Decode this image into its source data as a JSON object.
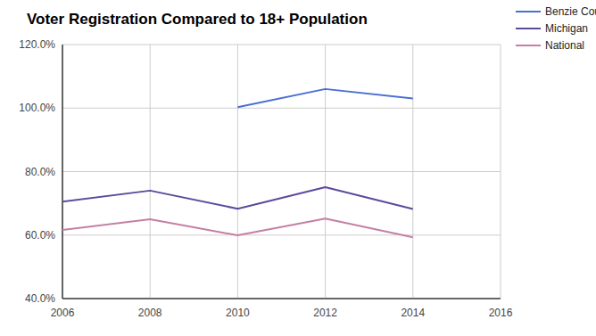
{
  "chart_data": {
    "type": "line",
    "title": "Voter Registration Compared to 18+ Population",
    "x": [
      2006,
      2008,
      2010,
      2012,
      2014
    ],
    "series": [
      {
        "name": "Benzie County",
        "color": "#4a6fd1",
        "values": [
          null,
          null,
          100.3,
          106.0,
          103.0
        ]
      },
      {
        "name": "Michigan",
        "color": "#5e4a9c",
        "values": [
          70.5,
          74.0,
          68.3,
          75.1,
          68.2
        ]
      },
      {
        "name": "National",
        "color": "#c47fa4",
        "values": [
          61.6,
          65.0,
          59.9,
          65.2,
          59.3
        ]
      }
    ],
    "xlim": [
      2006,
      2016
    ],
    "xticks": [
      2006,
      2008,
      2010,
      2012,
      2014,
      2016
    ],
    "ylim": [
      40,
      120
    ],
    "yticks": [
      {
        "value": 40,
        "label": "40.0%"
      },
      {
        "value": 60,
        "label": "60.0%"
      },
      {
        "value": 80,
        "label": "80.0%"
      },
      {
        "value": 100,
        "label": "100.0%"
      },
      {
        "value": 120,
        "label": "120.0%"
      }
    ],
    "grid": true,
    "legend": "right"
  }
}
